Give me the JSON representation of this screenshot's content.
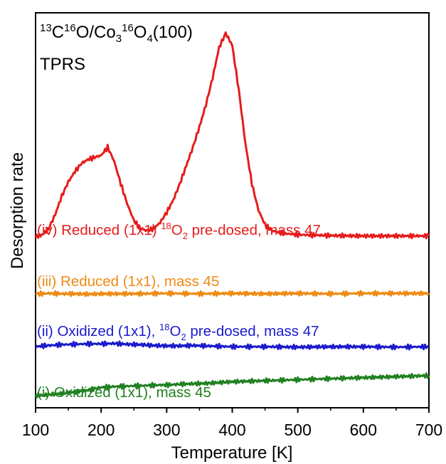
{
  "chart_data": {
    "type": "line",
    "title_parts": {
      "t1": "13",
      "t2": "C",
      "t3": "16",
      "t4": "O/Co",
      "t5": "3",
      "t6": "16",
      "t7": "O",
      "t8": "4",
      "t9": "(100)"
    },
    "subtitle": "TPRS",
    "xlabel": "Temperature [K]",
    "ylabel": "Desorption rate",
    "xlim": [
      100,
      700
    ],
    "xticks": [
      "100",
      "200",
      "300",
      "400",
      "500",
      "600",
      "700"
    ],
    "grid": false,
    "y_units": "arbitrary (offset traces)",
    "series": [
      {
        "name_parts": {
          "a": "(i) Oxidized (1x1), mass 45"
        },
        "color": "#208020",
        "baseline": 0.0,
        "x": [
          100,
          110,
          120,
          130,
          140,
          150,
          160,
          170,
          180,
          190,
          200,
          210,
          220,
          230,
          240,
          250,
          260,
          270,
          280,
          290,
          300,
          320,
          340,
          360,
          380,
          400,
          420,
          440,
          460,
          480,
          500,
          520,
          540,
          560,
          580,
          600,
          620,
          640,
          660,
          680,
          700
        ],
        "y": [
          0.0,
          0.1,
          0.2,
          0.4,
          0.5,
          0.7,
          0.9,
          1.1,
          1.3,
          1.7,
          2.0,
          2.1,
          2.2,
          2.3,
          2.3,
          2.4,
          2.4,
          2.5,
          2.5,
          2.6,
          2.6,
          2.8,
          2.9,
          3.0,
          3.2,
          3.4,
          3.5,
          3.6,
          3.7,
          3.8,
          3.9,
          4.0,
          4.1,
          4.2,
          4.3,
          4.4,
          4.5,
          4.6,
          4.7,
          4.8,
          4.9
        ]
      },
      {
        "name_parts": {
          "a": "(ii) Oxidized (1x1), ",
          "b": "18",
          "c": "O",
          "d": "2",
          "e": " pre-dosed, mass 47"
        },
        "color": "#1a1acc",
        "baseline": 12.0,
        "x": [
          100,
          110,
          120,
          140,
          160,
          180,
          200,
          220,
          240,
          260,
          280,
          300,
          320,
          340,
          360,
          380,
          400,
          450,
          500,
          550,
          600,
          650,
          700
        ],
        "y": [
          12.0,
          12.2,
          12.3,
          12.5,
          12.6,
          12.7,
          12.7,
          12.8,
          12.6,
          12.5,
          12.3,
          12.2,
          12.2,
          12.3,
          12.2,
          12.1,
          12.0,
          12.0,
          11.9,
          12.0,
          12.0,
          11.9,
          12.0
        ]
      },
      {
        "name_parts": {
          "a": "(iii) Reduced (1x1), mass 45"
        },
        "color": "#ee8a12",
        "baseline": 25.0,
        "x": [
          100,
          110,
          120,
          140,
          160,
          180,
          200,
          250,
          300,
          350,
          400,
          450,
          500,
          550,
          600,
          650,
          700
        ],
        "y": [
          25.0,
          25.0,
          25.1,
          25.0,
          25.0,
          24.9,
          25.0,
          25.0,
          25.1,
          25.0,
          25.1,
          25.0,
          25.1,
          25.0,
          25.1,
          25.1,
          25.1
        ]
      },
      {
        "name_parts": {
          "a": "(iv) Reduced (1x1) ",
          "b": "18",
          "c": "O",
          "d": "2",
          "e": " pre-dosed, mass 47"
        },
        "color": "#e61c1c",
        "baseline": 39.0,
        "x": [
          100,
          110,
          120,
          130,
          140,
          150,
          160,
          170,
          180,
          190,
          200,
          210,
          220,
          230,
          240,
          250,
          260,
          270,
          280,
          290,
          300,
          310,
          320,
          330,
          340,
          350,
          360,
          370,
          380,
          390,
          400,
          410,
          420,
          430,
          440,
          450,
          460,
          480,
          500,
          550,
          600,
          650,
          700
        ],
        "y": [
          39.0,
          39.5,
          41.0,
          44.5,
          49.0,
          52.5,
          55.0,
          57.0,
          58.0,
          58.5,
          59.0,
          61.0,
          57.5,
          52.0,
          47.0,
          43.0,
          41.0,
          40.5,
          41.0,
          42.5,
          45.0,
          48.0,
          52.0,
          56.5,
          61.0,
          66.0,
          71.5,
          78.0,
          85.5,
          89.0,
          86.0,
          75.0,
          62.0,
          52.0,
          45.5,
          42.0,
          40.5,
          39.8,
          39.5,
          39.3,
          39.2,
          39.2,
          39.2
        ]
      }
    ]
  }
}
